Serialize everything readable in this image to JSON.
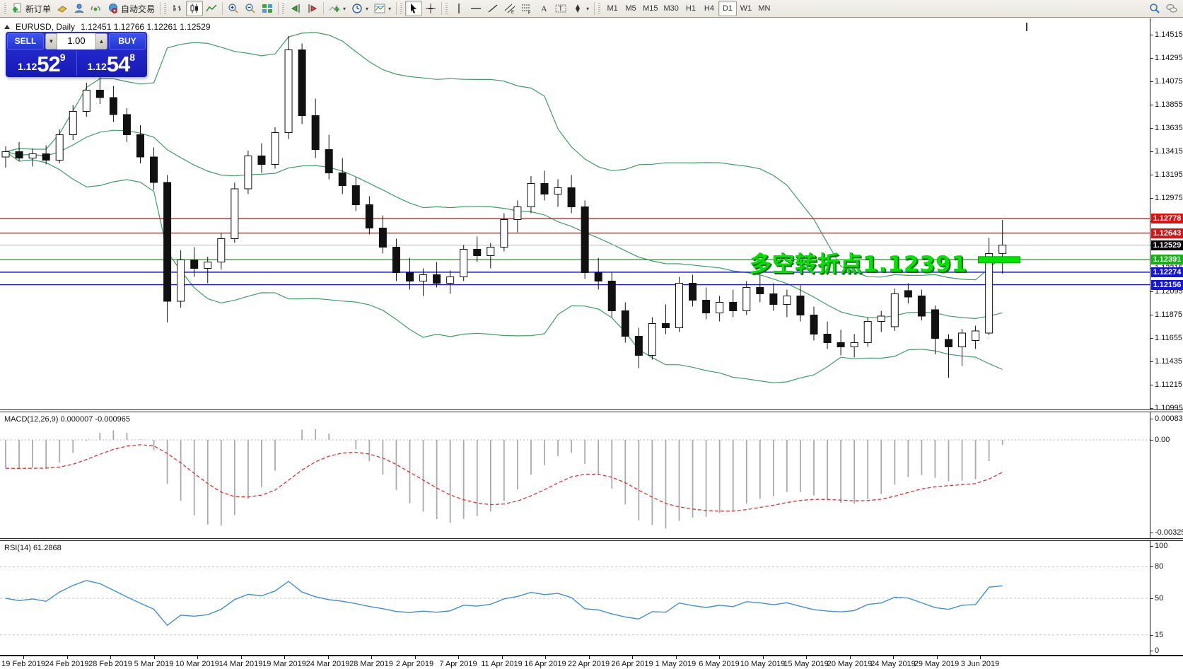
{
  "toolbar": {
    "groups": [
      {
        "handle": true,
        "items": [
          {
            "name": "new-order-button",
            "icon": "new-order-icon",
            "label": "新订单"
          },
          {
            "name": "journal-button",
            "icon": "journal-icon"
          },
          {
            "name": "profile-button",
            "icon": "profile-icon"
          },
          {
            "name": "signals-button",
            "icon": "signal-icon"
          },
          {
            "name": "autotrading-button",
            "icon": "autotrading-icon",
            "label": "自动交易"
          }
        ]
      },
      {
        "handle": true,
        "items": [
          {
            "name": "bar-chart-button",
            "icon": "bar-chart-icon"
          },
          {
            "name": "candlestick-chart-button",
            "icon": "candlestick-icon",
            "pressed": true
          },
          {
            "name": "line-chart-button",
            "icon": "line-chart-icon"
          }
        ]
      },
      {
        "items": [
          {
            "name": "zoom-in-button",
            "icon": "zoom-in-icon"
          },
          {
            "name": "zoom-out-button",
            "icon": "zoom-out-icon"
          },
          {
            "name": "tile-windows-button",
            "icon": "tile-windows-icon"
          }
        ]
      },
      {
        "handle": true,
        "items": [
          {
            "name": "auto-scroll-button",
            "icon": "auto-scroll-icon"
          },
          {
            "name": "chart-shift-button",
            "icon": "chart-shift-icon"
          }
        ]
      },
      {
        "items": [
          {
            "name": "indicators-button",
            "icon": "indicators-icon",
            "dropdown": true
          },
          {
            "name": "periods-button",
            "icon": "clock-icon",
            "dropdown": true
          },
          {
            "name": "templates-button",
            "icon": "template-icon",
            "dropdown": true
          }
        ]
      },
      {
        "handle": true,
        "items": [
          {
            "name": "cursor-button",
            "icon": "cursor-icon",
            "pressed": true
          },
          {
            "name": "crosshair-button",
            "icon": "crosshair-icon"
          }
        ]
      },
      {
        "handle": true,
        "items": [
          {
            "name": "vertical-line-button",
            "icon": "vertical-line-icon"
          },
          {
            "name": "horizontal-line-button",
            "icon": "horizontal-line-icon"
          },
          {
            "name": "trendline-button",
            "icon": "trendline-icon"
          },
          {
            "name": "equidistant-channel-button",
            "icon": "channel-icon"
          },
          {
            "name": "fibonacci-button",
            "icon": "fibonacci-icon"
          },
          {
            "name": "text-button",
            "icon": "text-icon"
          },
          {
            "name": "text-label-button",
            "icon": "text-label-icon"
          },
          {
            "name": "arrows-button",
            "icon": "arrows-icon",
            "dropdown": true
          }
        ]
      },
      {
        "handle": true,
        "timeframes": true
      }
    ],
    "timeframes": [
      "M1",
      "M5",
      "M15",
      "M30",
      "H1",
      "H4",
      "D1",
      "W1",
      "MN"
    ],
    "active_timeframe": "D1",
    "right_items": [
      {
        "name": "search-button",
        "icon": "search-icon"
      },
      {
        "name": "chat-button",
        "icon": "chat-icon"
      }
    ]
  },
  "chart": {
    "symbol_title": "EURUSD, Daily",
    "ohlc_text": "1.12451 1.12766 1.12261 1.12529"
  },
  "one_click": {
    "sell_label": "SELL",
    "buy_label": "BUY",
    "volume": "1.00",
    "sell_price_prefix": "1.12",
    "sell_price_big": "52",
    "sell_price_sup": "9",
    "buy_price_prefix": "1.12",
    "buy_price_big": "54",
    "buy_price_sup": "8"
  },
  "chart_data": {
    "type": "candlestick",
    "symbol": "EURUSD",
    "timeframe": "Daily",
    "ohlc_display": {
      "open": "1.12451",
      "high": "1.12766",
      "low": "1.12261",
      "close": "1.12529"
    },
    "x_labels": [
      "19 Feb 2019",
      "24 Feb 2019",
      "28 Feb 2019",
      "5 Mar 2019",
      "10 Mar 2019",
      "14 Mar 2019",
      "19 Mar 2019",
      "24 Mar 2019",
      "28 Mar 2019",
      "2 Apr 2019",
      "7 Apr 2019",
      "11 Apr 2019",
      "16 Apr 2019",
      "22 Apr 2019",
      "26 Apr 2019",
      "1 May 2019",
      "6 May 2019",
      "10 May 2019",
      "15 May 2019",
      "20 May 2019",
      "24 May 2019",
      "29 May 2019",
      "3 Jun 2019"
    ],
    "y_ticks": [
      1.14515,
      1.14295,
      1.14075,
      1.13855,
      1.13635,
      1.13415,
      1.13195,
      1.12975,
      1.12755,
      1.12535,
      1.12315,
      1.12095,
      1.11875,
      1.11655,
      1.11435,
      1.11215,
      1.10995
    ],
    "candles": [
      [
        1.1336,
        1.1346,
        1.1326,
        1.1341
      ],
      [
        1.1341,
        1.135,
        1.1332,
        1.1335
      ],
      [
        1.1335,
        1.1344,
        1.1327,
        1.1339
      ],
      [
        1.1339,
        1.1347,
        1.1329,
        1.1333
      ],
      [
        1.1333,
        1.1362,
        1.133,
        1.1357
      ],
      [
        1.1357,
        1.1385,
        1.1352,
        1.1379
      ],
      [
        1.1379,
        1.1406,
        1.1374,
        1.1399
      ],
      [
        1.1399,
        1.1412,
        1.1386,
        1.1392
      ],
      [
        1.1392,
        1.1403,
        1.1369,
        1.1376
      ],
      [
        1.1376,
        1.1382,
        1.135,
        1.1357
      ],
      [
        1.1357,
        1.1366,
        1.133,
        1.1336
      ],
      [
        1.1336,
        1.1345,
        1.1305,
        1.1312
      ],
      [
        1.1312,
        1.1319,
        1.118,
        1.12
      ],
      [
        1.12,
        1.1248,
        1.1194,
        1.1239
      ],
      [
        1.1239,
        1.1251,
        1.1223,
        1.1231
      ],
      [
        1.1231,
        1.1242,
        1.1217,
        1.1237
      ],
      [
        1.1237,
        1.1264,
        1.123,
        1.1259
      ],
      [
        1.1259,
        1.1312,
        1.1255,
        1.1306
      ],
      [
        1.1306,
        1.1342,
        1.1301,
        1.1337
      ],
      [
        1.1337,
        1.1349,
        1.1321,
        1.1329
      ],
      [
        1.1329,
        1.1364,
        1.1325,
        1.1359
      ],
      [
        1.1359,
        1.145,
        1.1353,
        1.1437
      ],
      [
        1.1437,
        1.1443,
        1.1367,
        1.1375
      ],
      [
        1.1375,
        1.1391,
        1.1335,
        1.1343
      ],
      [
        1.1343,
        1.1357,
        1.1315,
        1.1321
      ],
      [
        1.1321,
        1.1335,
        1.1301,
        1.1309
      ],
      [
        1.1309,
        1.1317,
        1.1285,
        1.1291
      ],
      [
        1.1291,
        1.1299,
        1.1263,
        1.1269
      ],
      [
        1.1269,
        1.1281,
        1.1245,
        1.1251
      ],
      [
        1.1251,
        1.1259,
        1.1219,
        1.1227
      ],
      [
        1.1227,
        1.1241,
        1.1211,
        1.1219
      ],
      [
        1.1219,
        1.1231,
        1.1205,
        1.1225
      ],
      [
        1.1225,
        1.1237,
        1.1213,
        1.1217
      ],
      [
        1.1217,
        1.1229,
        1.1207,
        1.1223
      ],
      [
        1.1223,
        1.1253,
        1.1219,
        1.1249
      ],
      [
        1.1249,
        1.1261,
        1.1237,
        1.1243
      ],
      [
        1.1243,
        1.1255,
        1.1231,
        1.1251
      ],
      [
        1.1251,
        1.1283,
        1.1247,
        1.1277
      ],
      [
        1.1277,
        1.1295,
        1.1265,
        1.1289
      ],
      [
        1.1289,
        1.1318,
        1.1283,
        1.1311
      ],
      [
        1.1311,
        1.1323,
        1.1295,
        1.1301
      ],
      [
        1.1301,
        1.1315,
        1.1289,
        1.1307
      ],
      [
        1.1307,
        1.1319,
        1.1283,
        1.1289
      ],
      [
        1.1289,
        1.1295,
        1.1221,
        1.1227
      ],
      [
        1.1227,
        1.1241,
        1.1211,
        1.1219
      ],
      [
        1.1219,
        1.1227,
        1.1185,
        1.1191
      ],
      [
        1.1191,
        1.1199,
        1.1161,
        1.1167
      ],
      [
        1.1167,
        1.1175,
        1.1137,
        1.1149
      ],
      [
        1.1149,
        1.1185,
        1.1145,
        1.1179
      ],
      [
        1.1179,
        1.1197,
        1.1169,
        1.1175
      ],
      [
        1.1175,
        1.1223,
        1.1171,
        1.1217
      ],
      [
        1.1217,
        1.1225,
        1.1195,
        1.1201
      ],
      [
        1.1201,
        1.1213,
        1.1183,
        1.1189
      ],
      [
        1.1189,
        1.1205,
        1.1181,
        1.1199
      ],
      [
        1.1199,
        1.1211,
        1.1185,
        1.1191
      ],
      [
        1.1191,
        1.1219,
        1.1187,
        1.1213
      ],
      [
        1.1213,
        1.1225,
        1.1199,
        1.1207
      ],
      [
        1.1207,
        1.1217,
        1.1191,
        1.1197
      ],
      [
        1.1197,
        1.1211,
        1.1185,
        1.1205
      ],
      [
        1.1205,
        1.1215,
        1.1181,
        1.1187
      ],
      [
        1.1187,
        1.1195,
        1.1163,
        1.1169
      ],
      [
        1.1169,
        1.1181,
        1.1155,
        1.1161
      ],
      [
        1.1161,
        1.1173,
        1.1149,
        1.1157
      ],
      [
        1.1157,
        1.1169,
        1.1147,
        1.1161
      ],
      [
        1.1161,
        1.1185,
        1.1157,
        1.1181
      ],
      [
        1.1181,
        1.1191,
        1.1171,
        1.1186
      ],
      [
        1.1176,
        1.1212,
        1.1172,
        1.1207
      ],
      [
        1.121,
        1.1217,
        1.1198,
        1.1204
      ],
      [
        1.1205,
        1.1211,
        1.1182,
        1.1186
      ],
      [
        1.1192,
        1.1196,
        1.115,
        1.1165
      ],
      [
        1.1164,
        1.1169,
        1.1128,
        1.1157
      ],
      [
        1.1157,
        1.1174,
        1.1139,
        1.117
      ],
      [
        1.1163,
        1.1177,
        1.1155,
        1.1172
      ],
      [
        1.117,
        1.126,
        1.1168,
        1.1245
      ],
      [
        1.12451,
        1.12766,
        1.12261,
        1.12529
      ]
    ],
    "indicators": {
      "bollinger": {
        "period": 20,
        "deviation": 2,
        "color": "#3e9e63"
      },
      "macd": {
        "label": "MACD(12,26,9)",
        "values_text": "0.000007 -0.000965",
        "axis_labels": [
          "0.000832",
          "0.00",
          "-0.003259"
        ],
        "histogram_color": "#aaaaaa",
        "signal_color": "#e03030"
      },
      "rsi": {
        "label": "RSI(14)",
        "value_text": "61.2868",
        "axis_labels": [
          "100",
          "80",
          "50",
          "15",
          "0"
        ],
        "levels": [
          80,
          50,
          15
        ],
        "line_color": "#3f8fd8"
      }
    },
    "objects": {
      "hlines": [
        {
          "price": 1.12778,
          "color": "#dd1111"
        },
        {
          "price": 1.12643,
          "color": "#dd1111"
        },
        {
          "price": 1.12391,
          "color": "#14b014"
        },
        {
          "price": 1.12274,
          "color": "#1414dd"
        },
        {
          "price": 1.12156,
          "color": "#1414dd"
        }
      ],
      "current_price": {
        "price": 1.12529,
        "line_color": "#c2c2c2",
        "box_color": "#000000"
      },
      "annotation": {
        "text": "多空转折点1.12391",
        "color": "#00e200"
      },
      "highlight_segment": {
        "price": 1.12391,
        "from_bar": 72.2,
        "to_bar": 75.3,
        "color": "#00e400"
      }
    }
  }
}
